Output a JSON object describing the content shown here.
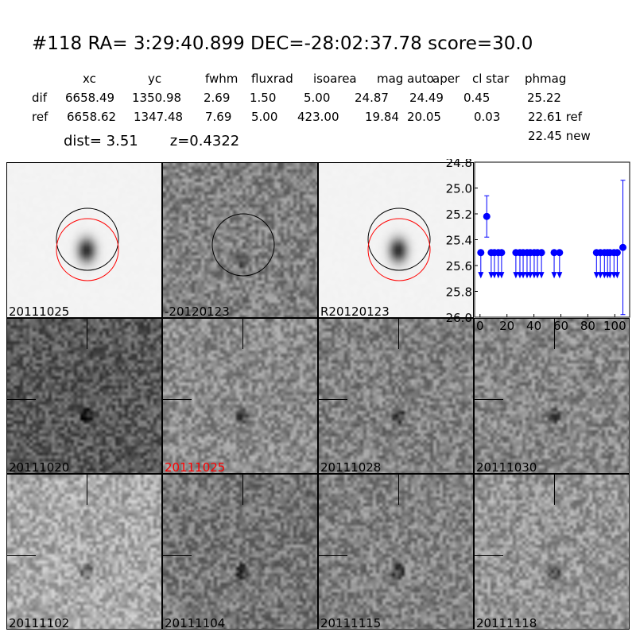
{
  "header": {
    "title": "#118   RA= 3:29:40.899 DEC=-28:02:37.78       score=30.0",
    "columns": [
      "xc",
      "yc",
      "fwhm",
      "fluxrad",
      "isoarea",
      "mag auto",
      "aper",
      "cl star",
      "phmag"
    ],
    "rows": [
      {
        "label": "dif",
        "values": [
          "6658.49",
          "1350.98",
          "2.69",
          "1.50",
          "5.00",
          "24.87",
          "24.49",
          "0.45",
          "25.22"
        ]
      },
      {
        "label": "ref",
        "values": [
          "6658.62",
          "1347.48",
          "7.69",
          "5.00",
          "423.00",
          "19.84",
          "20.05",
          "0.03",
          "22.61 ref"
        ]
      }
    ],
    "dist": "dist=  3.51",
    "z": "z=0.4322",
    "new": "22.45 new"
  },
  "stamps": [
    {
      "label": "20111025",
      "color": "#000000",
      "type": "ref"
    },
    {
      "label": "-20120123",
      "color": "#000000",
      "type": "diff"
    },
    {
      "label": "R20120123",
      "color": "#000000",
      "type": "ref"
    },
    {
      "label": "20111020",
      "color": "#000000",
      "type": "epoch"
    },
    {
      "label": "20111025",
      "color": "#ff0000",
      "type": "epoch"
    },
    {
      "label": "20111028",
      "color": "#000000",
      "type": "epoch"
    },
    {
      "label": "20111030",
      "color": "#000000",
      "type": "epoch"
    },
    {
      "label": "20111102",
      "color": "#000000",
      "type": "epoch"
    },
    {
      "label": "20111104",
      "color": "#000000",
      "type": "epoch"
    },
    {
      "label": "20111115",
      "color": "#000000",
      "type": "epoch"
    },
    {
      "label": "20111118",
      "color": "#000000",
      "type": "epoch"
    }
  ],
  "chart_data": {
    "type": "scatter",
    "color": "#0000ff",
    "xlim": [
      -4,
      111
    ],
    "ylim": [
      26.0,
      24.8
    ],
    "y_inverted": true,
    "xticks": [
      "0",
      "20",
      "40",
      "60",
      "80",
      "100"
    ],
    "yticks": [
      "24.8",
      "25.0",
      "25.2",
      "25.4",
      "25.6",
      "25.8",
      "26.0"
    ],
    "detections": [
      {
        "x": 5,
        "y": 25.22,
        "yerr": 0.16
      },
      {
        "x": 106,
        "y": 25.46,
        "yerr": 0.52
      }
    ],
    "upper_limits": {
      "y": 25.5,
      "x": [
        0.6,
        8.3,
        10.7,
        13.6,
        16,
        26.6,
        29.6,
        32,
        34.9,
        37.3,
        40.2,
        42.6,
        45.6,
        55,
        59,
        86.4,
        89.3,
        92.3,
        94.6,
        96.4,
        99.4,
        101.8
      ]
    }
  }
}
